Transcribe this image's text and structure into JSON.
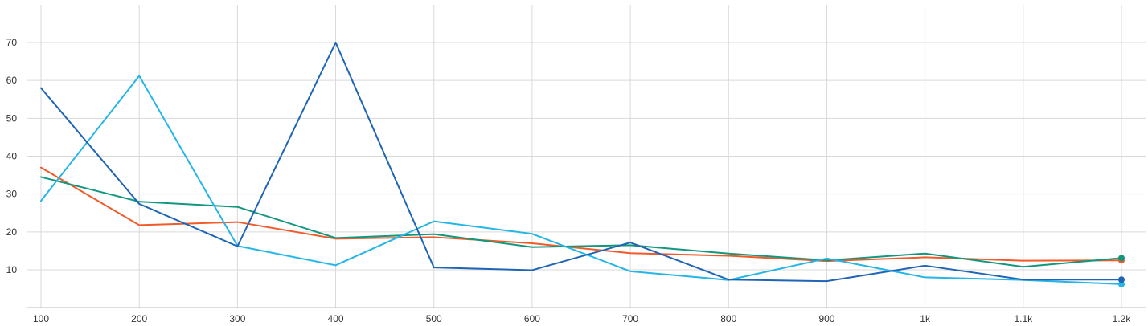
{
  "chart_data": {
    "type": "line",
    "x": [
      100,
      200,
      300,
      400,
      500,
      600,
      700,
      800,
      900,
      1000,
      1100,
      1200
    ],
    "x_tick_labels": [
      "100",
      "200",
      "300",
      "400",
      "500",
      "600",
      "700",
      "800",
      "900",
      "1k",
      "1.1k",
      "1.2k"
    ],
    "y_ticks": [
      10,
      20,
      30,
      40,
      50,
      60,
      70
    ],
    "y_tick_labels": [
      "10",
      "20",
      "30",
      "40",
      "50",
      "60",
      "70"
    ],
    "xlim": [
      85,
      1225
    ],
    "ylim": [
      0,
      80
    ],
    "grid": true,
    "series": [
      {
        "color": "#f15a29",
        "values": [
          37,
          21.8,
          22.6,
          18.2,
          18.6,
          17,
          14.4,
          13.7,
          12.3,
          13.3,
          12.4,
          12.5
        ]
      },
      {
        "color": "#12977f",
        "values": [
          34.5,
          28,
          26.6,
          18.4,
          19.4,
          16,
          16.5,
          14.3,
          12.5,
          14.3,
          10.8,
          13.1
        ]
      },
      {
        "color": "#23b6e6",
        "values": [
          28.2,
          61.2,
          16.3,
          11.2,
          22.8,
          19.5,
          9.6,
          7.3,
          13,
          8,
          7.3,
          6.2
        ]
      },
      {
        "color": "#1f64b5",
        "values": [
          58,
          27.4,
          16.2,
          70,
          10.6,
          9.9,
          17.2,
          7.4,
          7,
          11.1,
          7.4,
          7.4
        ]
      }
    ]
  }
}
